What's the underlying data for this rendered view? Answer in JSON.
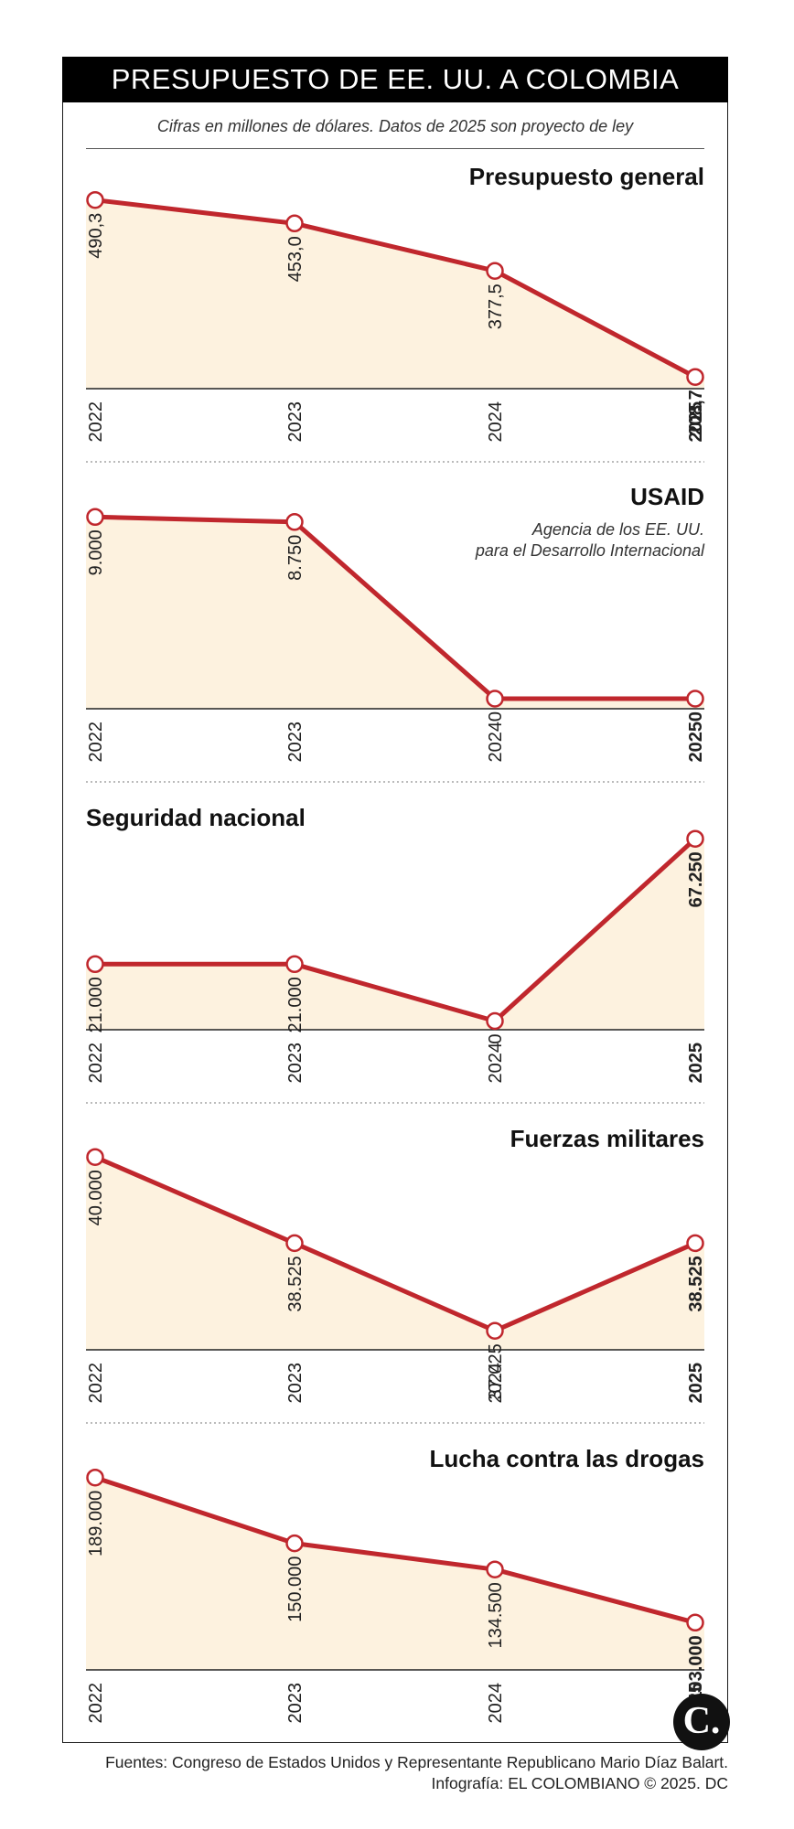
{
  "header": {
    "title": "PRESUPUESTO DE EE. UU. A COLOMBIA",
    "subtitle": "Cifras en millones de dólares. Datos de 2025 son proyecto de ley"
  },
  "colors": {
    "line": "#c0272d",
    "fill": "#fdf2df",
    "title_bg": "#000000"
  },
  "chart_data": [
    {
      "type": "area",
      "title": "Presupuesto general",
      "subtitle": "",
      "categories": [
        "2022",
        "2023",
        "2024",
        "2025"
      ],
      "values": [
        490.3,
        453.0,
        377.5,
        208.7
      ],
      "labels": [
        "490,3",
        "453,0",
        "377,5",
        "208,7"
      ],
      "ylim": [
        190,
        500
      ],
      "title_align": "right"
    },
    {
      "type": "area",
      "title": "USAID",
      "subtitle": "Agencia de los EE. UU. para el Desarrollo Internacional",
      "categories": [
        "2022",
        "2023",
        "2024",
        "2025"
      ],
      "values": [
        9000,
        8750,
        0,
        0
      ],
      "labels": [
        "9.000",
        "8.750",
        "0",
        "0"
      ],
      "ylim": [
        -500,
        9150
      ],
      "title_align": "right"
    },
    {
      "type": "area",
      "title": "Seguridad nacional",
      "subtitle": "",
      "categories": [
        "2022",
        "2023",
        "2024",
        "2025"
      ],
      "values": [
        21000,
        21000,
        0,
        67250
      ],
      "labels": [
        "21.000",
        "21.000",
        "0",
        "67.250"
      ],
      "ylim": [
        -3200,
        69000
      ],
      "title_align": "left"
    },
    {
      "type": "area",
      "title": "Fuerzas militares",
      "subtitle": "",
      "categories": [
        "2022",
        "2023",
        "2024",
        "2025"
      ],
      "values": [
        40000,
        38525,
        37025,
        38525
      ],
      "labels": [
        "40.000",
        "38.525",
        "37.025",
        "38.525"
      ],
      "ylim": [
        36700,
        40050
      ],
      "title_align": "right"
    },
    {
      "type": "area",
      "title": "Lucha contra las drogas",
      "subtitle": "",
      "categories": [
        "2022",
        "2023",
        "2024",
        "2025"
      ],
      "values": [
        189000,
        150000,
        134500,
        103000
      ],
      "labels": [
        "189.000",
        "150.000",
        "134.500",
        "103.000"
      ],
      "ylim": [
        75000,
        191000
      ],
      "title_align": "right"
    }
  ],
  "footer": {
    "sources": "Fuentes: Congreso de Estados Unidos y Representante Republicano Mario Díaz Balart.",
    "credit": "Infografía: EL COLOMBIANO © 2025. DC",
    "logo_letter": "C."
  }
}
